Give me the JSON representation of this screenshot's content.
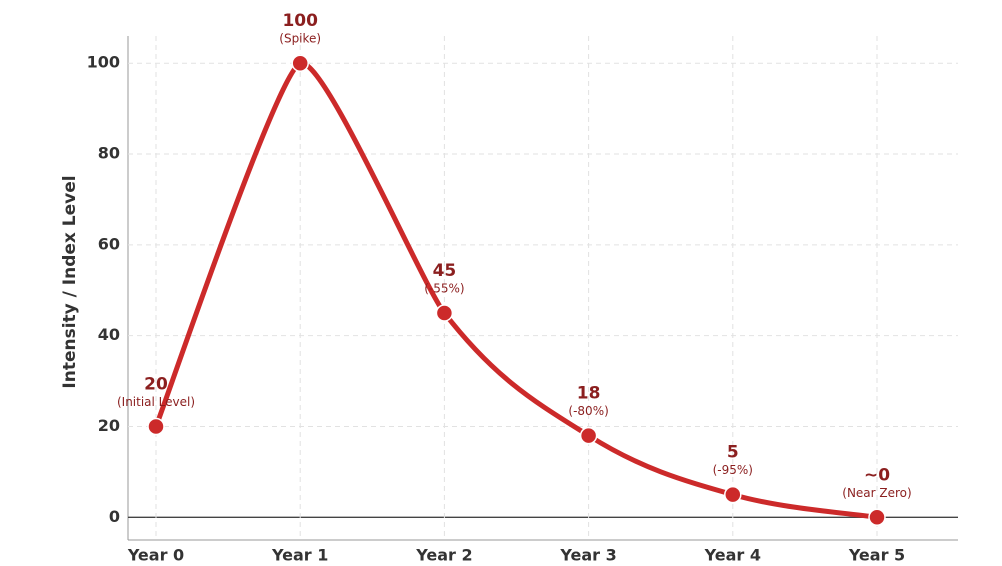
{
  "chart_data": {
    "type": "line",
    "y_label": "Intensity / Index Level",
    "categories": [
      "Year 0",
      "Year 1",
      "Year 2",
      "Year 3",
      "Year 4",
      "Year 5"
    ],
    "values": [
      20,
      100,
      45,
      18,
      5,
      0
    ],
    "value_labels": [
      "20",
      "100",
      "45",
      "18",
      "5",
      "~0"
    ],
    "annotations": [
      "(Initial Level)",
      "(Spike)",
      "(-55%)",
      "(-80%)",
      "(-95%)",
      "(Near Zero)"
    ],
    "color": "#cc2a2a",
    "ylim": [
      -5,
      106
    ],
    "yticks": [
      0,
      20,
      40,
      60,
      80,
      100
    ],
    "grid": true
  }
}
